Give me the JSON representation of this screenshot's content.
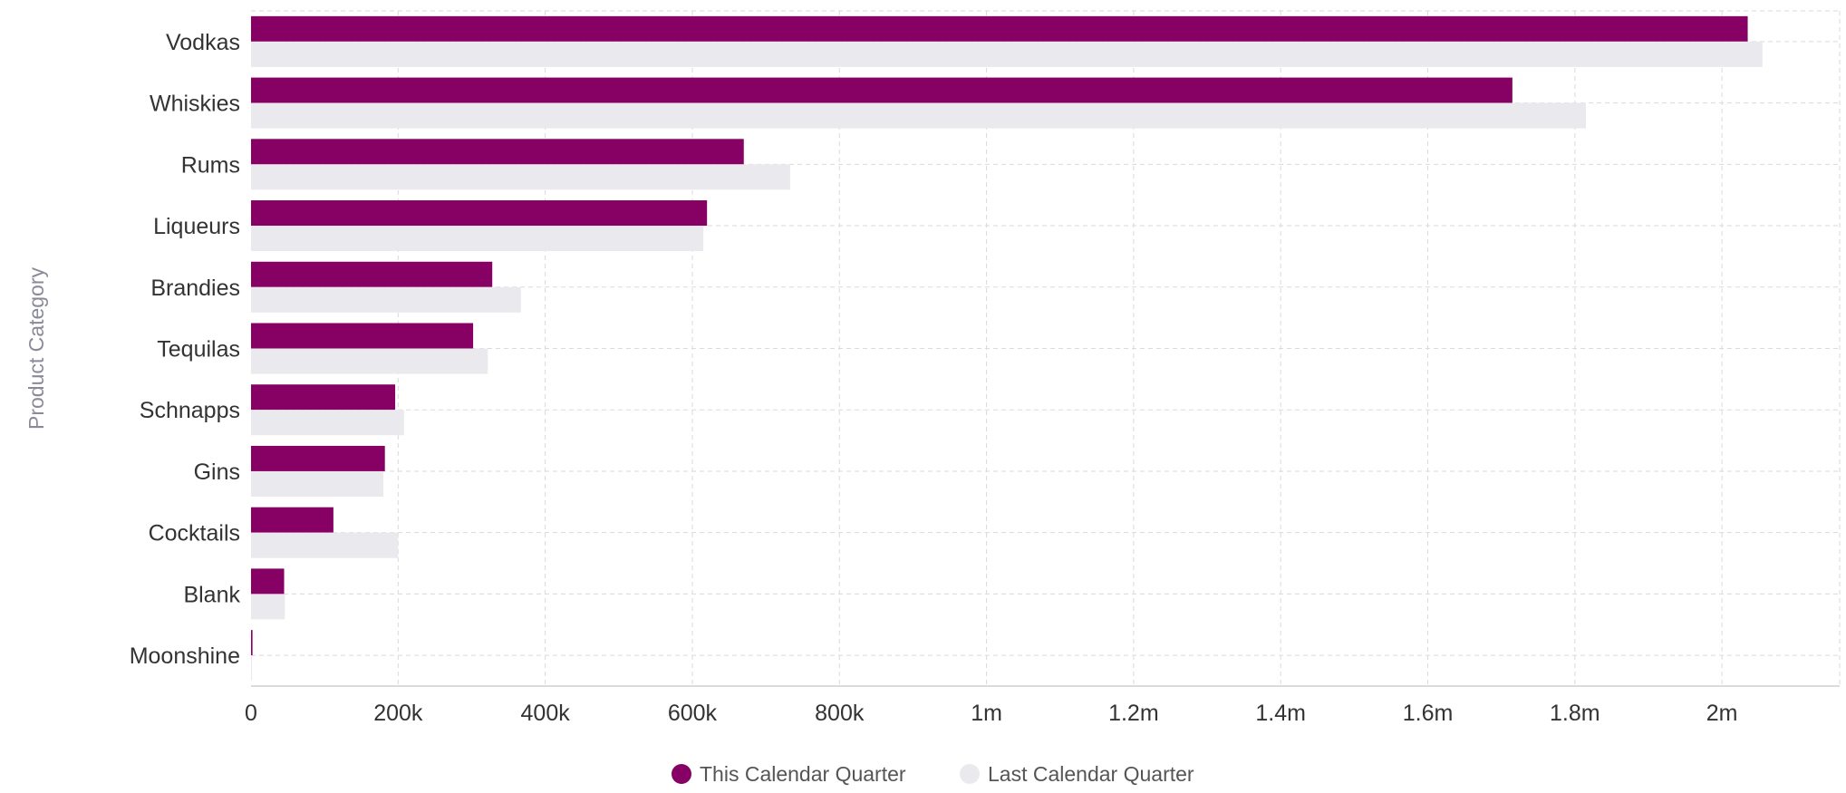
{
  "chart_data": {
    "type": "bar",
    "orientation": "horizontal",
    "categories": [
      "Vodkas",
      "Whiskies",
      "Rums",
      "Liqueurs",
      "Brandies",
      "Tequilas",
      "Schnapps",
      "Gins",
      "Cocktails",
      "Blank",
      "Moonshine"
    ],
    "series": [
      {
        "name": "This Calendar Quarter",
        "color": "#870063",
        "values": [
          2035000,
          1715000,
          670000,
          620000,
          328000,
          302000,
          196000,
          182000,
          112000,
          45000,
          2000
        ]
      },
      {
        "name": "Last Calendar Quarter",
        "color": "#eaeaee",
        "values": [
          2055000,
          1815000,
          733000,
          615000,
          367000,
          322000,
          208000,
          180000,
          200000,
          46000,
          1000
        ]
      }
    ],
    "xlim": [
      0,
      2160000
    ],
    "xticks": [
      0,
      200000,
      400000,
      600000,
      800000,
      1000000,
      1200000,
      1400000,
      1600000,
      1800000,
      2000000
    ],
    "xtick_labels": [
      "0",
      "200k",
      "400k",
      "600k",
      "800k",
      "1m",
      "1.2m",
      "1.4m",
      "1.6m",
      "1.8m",
      "2m"
    ],
    "ylabel": "Product Category",
    "xlabel": "",
    "grid": true,
    "legend_position": "bottom"
  }
}
